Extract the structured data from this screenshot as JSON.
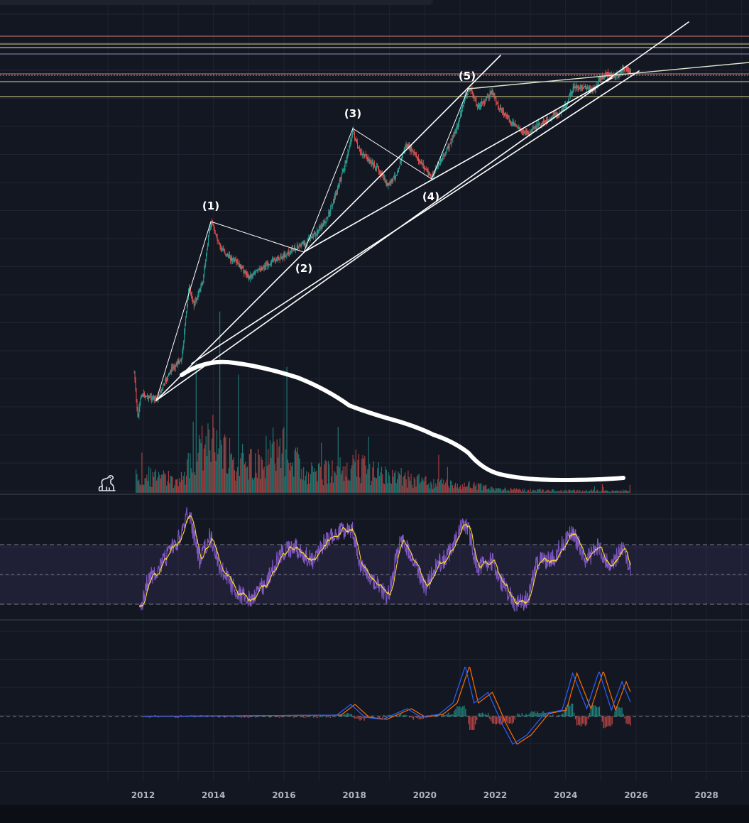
{
  "chart_data": {
    "type": "candlestick",
    "title": "",
    "scale": "log",
    "grid": true,
    "x_ticks": [
      "2012",
      "2014",
      "2016",
      "2018",
      "2020",
      "2022",
      "2024",
      "2026",
      "2028"
    ],
    "wave_labels": [
      {
        "label": "(1)",
        "date": "2013-12"
      },
      {
        "label": "(2)",
        "date": "2016-08"
      },
      {
        "label": "(3)",
        "date": "2017-12"
      },
      {
        "label": "(4)",
        "date": "2020-03"
      },
      {
        "label": "(5)",
        "date": "2021-04"
      }
    ],
    "horizontal_levels": [
      {
        "color": "#ff8a80"
      },
      {
        "color": "#fff59d"
      },
      {
        "color": "#ffffff"
      },
      {
        "color": "#b39ddb"
      },
      {
        "color": "#ff8a80"
      },
      {
        "color": "#fff59d"
      },
      {
        "color": "#fff59d"
      }
    ],
    "panels": [
      "price",
      "volume",
      "rsi",
      "macd"
    ],
    "rsi_band": {
      "upper": 70,
      "middle": 50,
      "lower": 30
    },
    "colors": {
      "background": "#131722",
      "up": "#26a69a",
      "down": "#ef5350",
      "rsi": "#7e57c2",
      "rsi_ma": "#fdd835",
      "macd": "#2962ff",
      "signal": "#ff6d00"
    },
    "icons": {
      "watermark": "dinosaur-icon"
    }
  }
}
